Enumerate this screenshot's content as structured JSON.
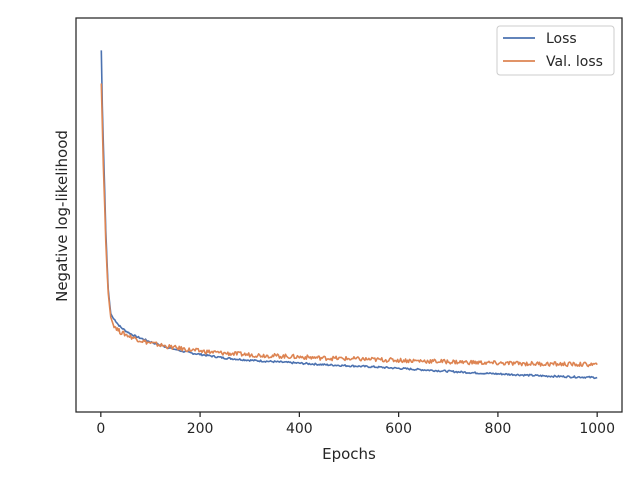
{
  "chart_data": {
    "type": "line",
    "title": "",
    "xlabel": "Epochs",
    "ylabel": "Negative log-likelihood",
    "xlim": [
      -50,
      1050
    ],
    "ylim": [
      0,
      1
    ],
    "xticks": [
      "0",
      "200",
      "400",
      "600",
      "800",
      "1000"
    ],
    "xtick_values": [
      0,
      200,
      400,
      600,
      800,
      1000
    ],
    "yticks_shown": false,
    "grid": false,
    "legend": {
      "placement": "upper right"
    },
    "series": [
      {
        "name": "Loss",
        "color": "#4c72b0",
        "x": [
          1,
          3,
          5,
          8,
          10,
          13,
          15,
          18,
          20,
          25,
          30,
          35,
          40,
          50,
          60,
          70,
          80,
          90,
          100,
          120,
          140,
          160,
          180,
          200,
          250,
          300,
          350,
          400,
          450,
          500,
          550,
          600,
          650,
          700,
          750,
          800,
          850,
          900,
          950,
          1000
        ],
        "y": [
          0.95,
          0.8,
          0.7,
          0.56,
          0.46,
          0.36,
          0.3,
          0.26,
          0.235,
          0.222,
          0.215,
          0.205,
          0.198,
          0.188,
          0.18,
          0.173,
          0.168,
          0.163,
          0.158,
          0.149,
          0.141,
          0.134,
          0.128,
          0.124,
          0.114,
          0.108,
          0.104,
          0.1,
          0.096,
          0.093,
          0.09,
          0.086,
          0.082,
          0.078,
          0.074,
          0.071,
          0.068,
          0.065,
          0.063,
          0.061
        ]
      },
      {
        "name": "Val. loss",
        "color": "#dd8452",
        "x": [
          1,
          3,
          5,
          8,
          10,
          13,
          15,
          18,
          20,
          25,
          30,
          35,
          40,
          50,
          60,
          70,
          80,
          90,
          100,
          120,
          140,
          160,
          180,
          200,
          250,
          300,
          350,
          400,
          450,
          500,
          550,
          600,
          650,
          700,
          750,
          800,
          850,
          900,
          950,
          1000
        ],
        "y": [
          0.86,
          0.75,
          0.64,
          0.52,
          0.43,
          0.34,
          0.29,
          0.25,
          0.225,
          0.205,
          0.198,
          0.19,
          0.184,
          0.178,
          0.172,
          0.167,
          0.162,
          0.158,
          0.155,
          0.149,
          0.144,
          0.14,
          0.136,
          0.133,
          0.127,
          0.123,
          0.12,
          0.117,
          0.114,
          0.112,
          0.11,
          0.108,
          0.106,
          0.104,
          0.102,
          0.1,
          0.099,
          0.098,
          0.097,
          0.096
        ]
      }
    ]
  }
}
